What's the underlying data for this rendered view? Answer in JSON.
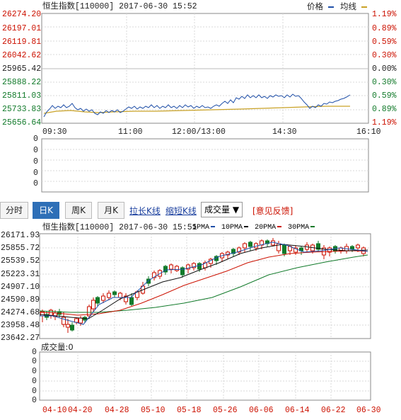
{
  "intraday": {
    "title": "恒生指数[110000] 2017-06-30 15:52",
    "legend_price": "价格",
    "legend_avg": "均线",
    "left_axis": [
      "26274.20",
      "26197.01",
      "26119.81",
      "26042.62",
      "25965.42",
      "25888.22",
      "25811.03",
      "25733.83",
      "25656.64"
    ],
    "right_axis": [
      "1.19%",
      "0.89%",
      "0.59%",
      "0.30%",
      "0.00%",
      "0.30%",
      "0.59%",
      "0.89%",
      "1.19%"
    ],
    "time_labels": [
      "09:30",
      "11:00",
      "12:00/13:00",
      "14:30",
      "16:10"
    ],
    "volume_axis": [
      "0",
      "0",
      "0",
      "0",
      "0"
    ],
    "colors": {
      "price": "#1f4fa8",
      "avg": "#c9a227",
      "up": "#cc1100",
      "down": "#117a2a"
    }
  },
  "toolbar": {
    "timeshare": "分时",
    "day_k": "日K",
    "week_k": "周K",
    "month_k": "月K",
    "lengthen": "拉长K线",
    "shorten": "缩短K线",
    "indicator": "成交量 ▼",
    "feedback": "[意见反馈]"
  },
  "kline": {
    "title": "恒生指数[110000] 2017-06-30 15:51",
    "ma_labels": [
      "5PMA",
      "10PMA",
      "20PMA",
      "30PMA"
    ],
    "left_axis": [
      "26171.93",
      "25855.72",
      "25539.52",
      "25223.31",
      "24907.10",
      "24590.89",
      "24274.68",
      "23958.48",
      "23642.27"
    ],
    "volume_label": "成交量:0",
    "volume_axis": [
      "0",
      "0",
      "0",
      "0",
      "0",
      "0"
    ],
    "date_labels": [
      "04-10",
      "04-20",
      "04-28",
      "05-10",
      "05-18",
      "05-26",
      "06-06",
      "06-14",
      "06-22",
      "06-30"
    ],
    "colors": {
      "ma5": "#1f4fa8",
      "ma10": "#111111",
      "ma20": "#cc1100",
      "ma30": "#117a2a"
    }
  }
}
